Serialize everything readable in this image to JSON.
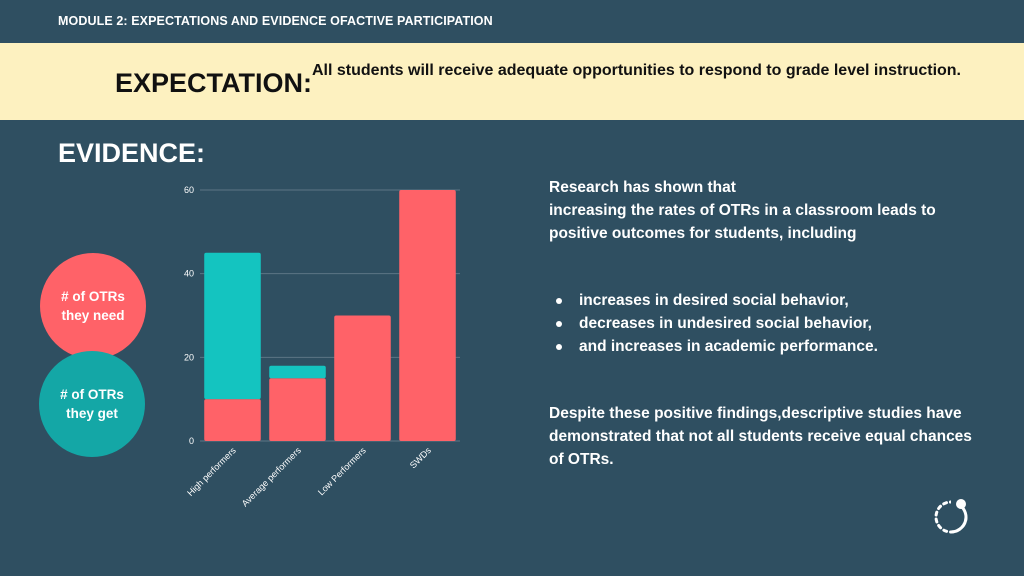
{
  "module_title": "MODULE 2: EXPECTATIONS AND EVIDENCE OFACTIVE PARTICIPATION",
  "expectation": {
    "label": "EXPECTATION:",
    "text": "All students will receive adequate opportunities to respond to grade level instruction."
  },
  "evidence_label": "EVIDENCE:",
  "legend": {
    "need": "# of OTRs\nthey need",
    "get": "# of OTRs\nthey get"
  },
  "colors": {
    "need": "#ff6268",
    "get": "#14c4c0",
    "background": "#2f4f61",
    "banner": "#fdf1c0"
  },
  "chart_data": {
    "type": "bar",
    "stacked": true,
    "categories": [
      "High performers",
      "Average performers",
      "Low Performers",
      "SWDs"
    ],
    "series": [
      {
        "name": "# of OTRs they need",
        "values": [
          10,
          15,
          30,
          60
        ]
      },
      {
        "name": "# of OTRs they get",
        "values": [
          35,
          3,
          0,
          0
        ]
      }
    ],
    "ylim": [
      0,
      60
    ],
    "yticks": [
      "0",
      "20",
      "40",
      "60"
    ],
    "grid": true
  },
  "research": {
    "intro": "Research has shown that\nincreasing the rates of OTRs in a classroom leads to positive outcomes for students, including",
    "bullets": [
      "increases in desired social behavior,",
      "decreases in undesired social behavior,",
      "and increases in academic performance."
    ],
    "conclusion": "Despite these positive findings,descriptive studies have demonstrated that not all students receive equal chances of OTRs."
  },
  "logo_icon": "circular-dots-logo-icon"
}
